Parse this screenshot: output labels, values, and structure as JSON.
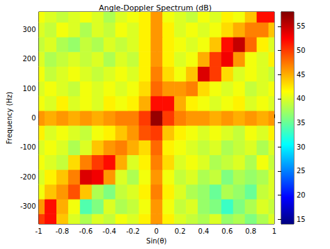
{
  "chart_data": {
    "type": "heatmap",
    "title": "Angle-Doppler Spectrum (dB)",
    "x_label": "Sin(θ)",
    "y_label": "Frequency (Hz)",
    "x": [
      -1,
      -0.9,
      -0.8,
      -0.7,
      -0.6,
      -0.5,
      -0.4,
      -0.3,
      -0.2,
      -0.1,
      0,
      0.1,
      0.2,
      0.3,
      0.4,
      0.5,
      0.6,
      0.7,
      0.8,
      0.9,
      1
    ],
    "y": [
      -350,
      -300,
      -250,
      -200,
      -150,
      -100,
      -50,
      0,
      50,
      100,
      150,
      200,
      250,
      300,
      350
    ],
    "cells": [
      [
        50,
        52,
        44,
        40,
        38,
        40,
        39,
        41,
        40,
        42,
        46,
        42,
        40,
        39,
        38,
        40,
        37,
        38,
        36,
        38,
        40
      ],
      [
        46,
        52,
        45,
        41,
        34,
        36,
        40,
        38,
        39,
        41,
        46,
        41,
        39,
        40,
        37,
        36,
        33,
        36,
        38,
        40,
        39
      ],
      [
        41,
        44,
        46,
        49,
        44,
        38,
        36,
        39,
        40,
        42,
        47,
        42,
        40,
        38,
        37,
        35,
        38,
        37,
        35,
        39,
        40
      ],
      [
        40,
        42,
        44,
        47,
        54,
        53,
        46,
        40,
        38,
        41,
        46,
        41,
        39,
        40,
        38,
        39,
        36,
        38,
        37,
        38,
        40
      ],
      [
        41,
        40,
        39,
        43,
        47,
        50,
        52,
        45,
        40,
        42,
        47,
        43,
        40,
        41,
        40,
        38,
        39,
        40,
        38,
        41,
        39
      ],
      [
        40,
        41,
        40,
        38,
        40,
        44,
        46,
        47,
        45,
        43,
        48,
        42,
        41,
        40,
        39,
        40,
        38,
        39,
        40,
        38,
        40
      ],
      [
        42,
        40,
        41,
        40,
        39,
        41,
        42,
        44,
        46,
        49,
        50,
        44,
        42,
        41,
        40,
        41,
        40,
        39,
        41,
        40,
        42
      ],
      [
        46,
        45,
        46,
        45,
        46,
        45,
        46,
        47,
        47,
        50,
        57,
        50,
        47,
        46,
        46,
        45,
        46,
        45,
        46,
        45,
        46
      ],
      [
        41,
        40,
        42,
        40,
        41,
        40,
        42,
        41,
        42,
        45,
        52,
        52,
        45,
        42,
        41,
        40,
        41,
        42,
        40,
        41,
        40
      ],
      [
        40,
        41,
        40,
        39,
        41,
        40,
        41,
        40,
        41,
        43,
        48,
        46,
        46,
        47,
        43,
        41,
        40,
        41,
        39,
        40,
        41
      ],
      [
        41,
        39,
        40,
        41,
        40,
        39,
        40,
        41,
        40,
        42,
        47,
        43,
        41,
        44,
        54,
        50,
        43,
        40,
        41,
        40,
        39
      ],
      [
        40,
        38,
        39,
        40,
        39,
        40,
        38,
        40,
        39,
        42,
        46,
        42,
        40,
        41,
        45,
        50,
        53,
        46,
        41,
        40,
        42
      ],
      [
        39,
        40,
        38,
        37,
        39,
        38,
        40,
        39,
        40,
        42,
        46,
        42,
        41,
        40,
        41,
        44,
        52,
        55,
        48,
        42,
        40
      ],
      [
        40,
        39,
        41,
        40,
        38,
        40,
        39,
        41,
        40,
        42,
        46,
        42,
        40,
        41,
        40,
        41,
        43,
        45,
        47,
        47,
        44
      ],
      [
        41,
        40,
        39,
        40,
        41,
        40,
        38,
        40,
        41,
        42,
        46,
        41,
        40,
        39,
        41,
        40,
        42,
        41,
        44,
        52,
        52
      ]
    ],
    "xlim": [
      -1,
      1
    ],
    "xticks": [
      -1,
      -0.8,
      -0.6,
      -0.4,
      -0.2,
      0,
      0.2,
      0.4,
      0.6,
      0.8,
      1
    ],
    "ylim": [
      -360,
      360
    ],
    "yticks": [
      -300,
      -200,
      -100,
      0,
      100,
      200,
      300
    ],
    "colorbar_range": [
      14,
      58
    ],
    "colorbar_ticks": [
      15,
      20,
      25,
      30,
      35,
      40,
      45,
      50,
      55
    ]
  }
}
